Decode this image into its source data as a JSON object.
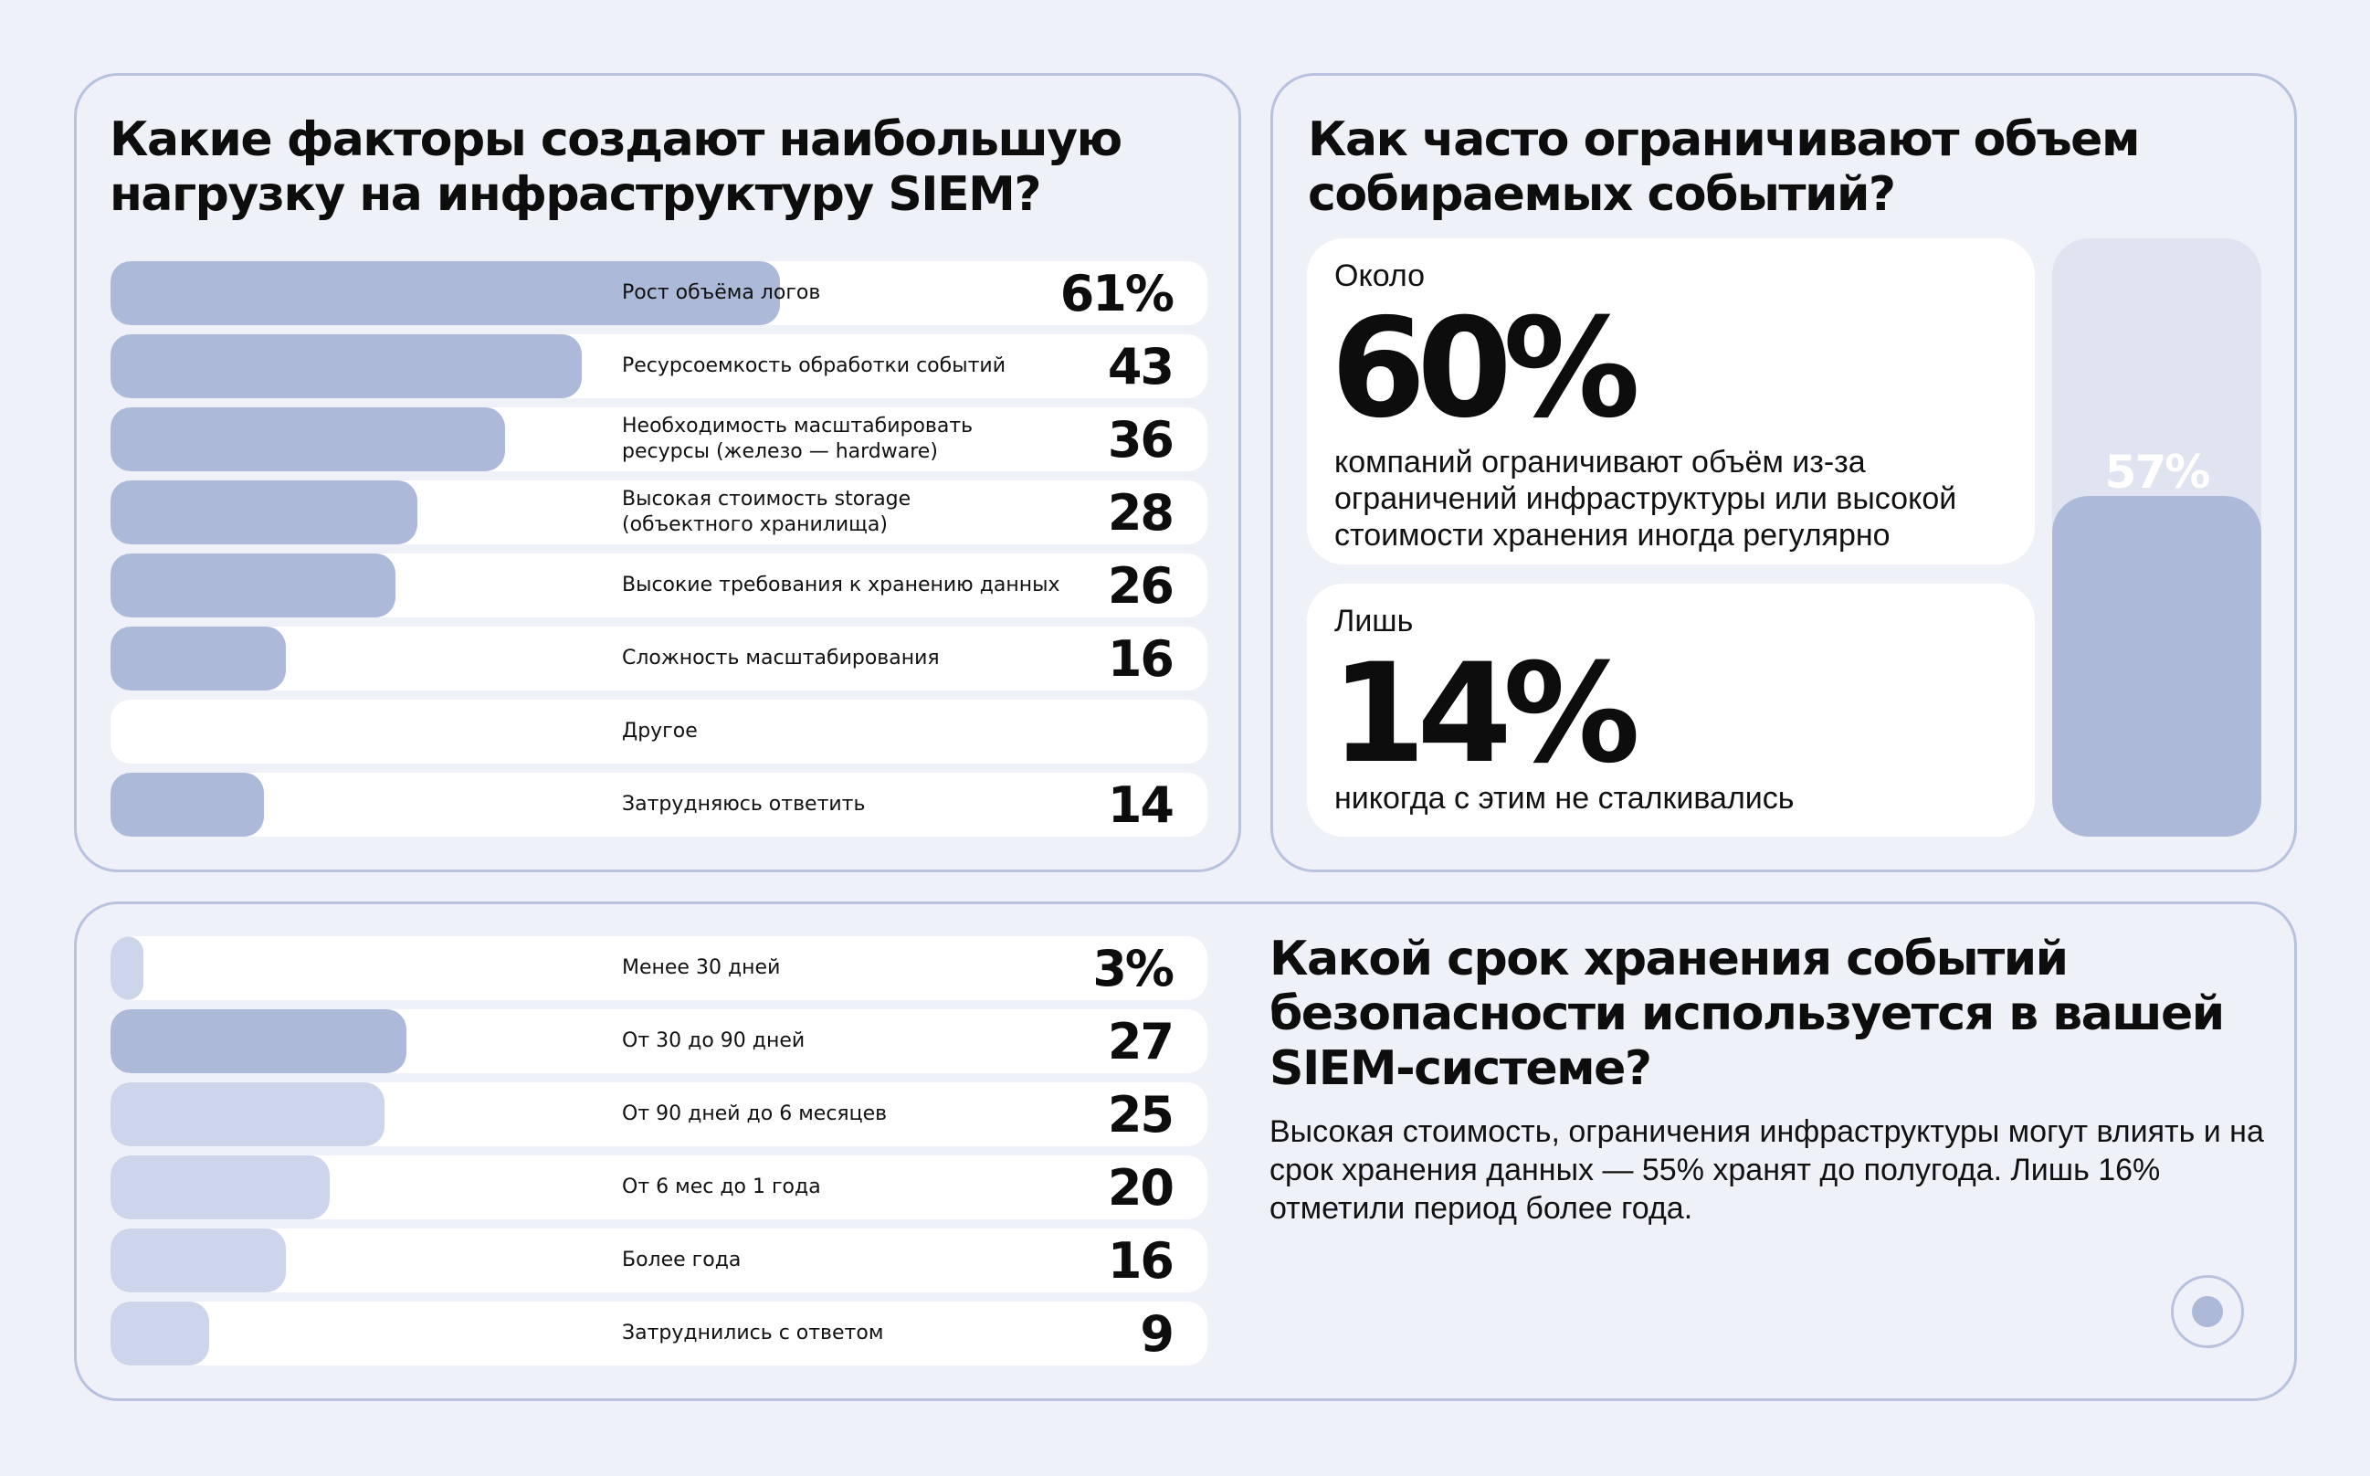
{
  "panel_load": {
    "title": "Какие факторы создают наибольшую\nнагрузку на инфраструктуру SIEM?"
  },
  "panel_limit": {
    "title": "Как часто ограничивают объем\nсобираемых событий?",
    "card_about": {
      "prefix": "Около",
      "value": "60%",
      "description": "компаний ограничивают объём из-за ограничений инфраструктуры или высокой стоимости хранения иногда регулярно"
    },
    "card_only": {
      "prefix": "Лишь",
      "value": "14%",
      "description": "никогда с этим не сталкивались"
    },
    "side_bar": {
      "value": 57,
      "label": "57%"
    }
  },
  "panel_retention": {
    "title": "Какой срок хранения событий\nбезопасности используется в вашей\nSIEM-системе?",
    "body": "Высокая стоимость, ограничения инфраструктуры могут влиять и на срок хранения данных — 55% хранят до полугода. Лишь 16% отметили период более года."
  },
  "colors": {
    "accent": "#adb9d9",
    "accent_light": "#cdd5ea",
    "panel_border": "#b8c2dd",
    "background": "#eef1f8",
    "card": "#ffffff"
  },
  "icons": {
    "corner": "record-icon"
  },
  "chart_data": [
    {
      "type": "bar",
      "orientation": "horizontal",
      "title": "Какие факторы создают наибольшую нагрузку на инфраструктуру SIEM?",
      "unit": "%",
      "categories": [
        "Рост объёма логов",
        "Ресурсоемкость обработки событий",
        "Необходимость масштабировать\nресурсы (железо — hardware)",
        "Высокая стоимость storage\n(объектного хранилища)",
        "Высокие требования к хранению данных",
        "Сложность масштабирования",
        "Другое",
        "Затрудняюсь ответить"
      ],
      "values": [
        61,
        43,
        36,
        28,
        26,
        16,
        null,
        14
      ],
      "value_labels": [
        "61%",
        "43",
        "36",
        "28",
        "26",
        "16",
        "",
        "14"
      ],
      "xlim": [
        0,
        100
      ]
    },
    {
      "type": "bar",
      "orientation": "horizontal",
      "title": "Какой срок хранения событий безопасности используется в вашей SIEM-системе?",
      "unit": "%",
      "categories": [
        "Менее 30 дней",
        "От 30 до 90 дней",
        "От 90 дней до 6 месяцев",
        "От 6 мес до 1 года",
        "Более года",
        "Затруднились с ответом"
      ],
      "values": [
        3,
        27,
        25,
        20,
        16,
        9
      ],
      "value_labels": [
        "3%",
        "27",
        "25",
        "20",
        "16",
        "9"
      ],
      "highlight": [
        false,
        true,
        false,
        false,
        false,
        false
      ],
      "xlim": [
        0,
        100
      ]
    }
  ]
}
